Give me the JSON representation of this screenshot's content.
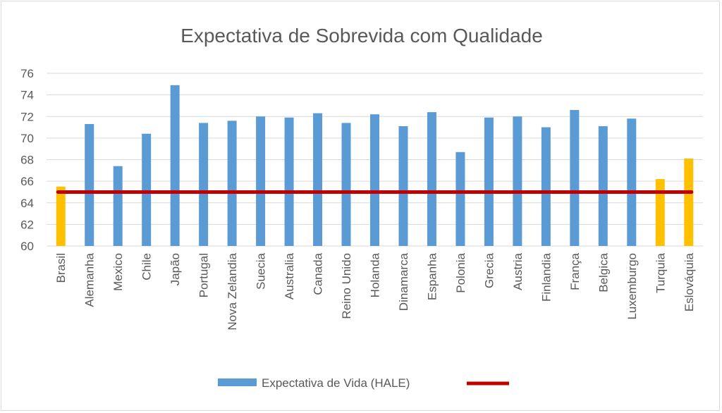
{
  "chart_data": {
    "type": "bar",
    "title": "Expectativa de Sobrevida com Qualidade",
    "xlabel": "",
    "ylabel": "",
    "ylim": [
      60,
      76
    ],
    "yticks": [
      60,
      62,
      64,
      66,
      68,
      70,
      72,
      74,
      76
    ],
    "grid": true,
    "categories": [
      "Brasil",
      "Alemanha",
      "Mexico",
      "Chile",
      "Japão",
      "Portugal",
      "Nova Zelandia",
      "Suecia",
      "Australia",
      "Canada",
      "Reino Unido",
      "Holanda",
      "Dinamarca",
      "Espanha",
      "Polonia",
      "Grecia",
      "Austria",
      "Finlandia",
      "França",
      "Belgica",
      "Luxemburgo",
      "Turquia",
      "Eslováquia"
    ],
    "series": [
      {
        "name": "Expectativa de Vida (HALE)",
        "values": [
          65.5,
          71.3,
          67.4,
          70.4,
          74.9,
          71.4,
          71.6,
          72.0,
          71.9,
          72.3,
          71.4,
          72.2,
          71.1,
          72.4,
          68.7,
          71.9,
          72.0,
          71.0,
          72.6,
          71.1,
          71.8,
          66.2,
          68.1
        ],
        "color": "#5b9bd5",
        "highlight_color": "#ffc000",
        "highlight_categories": [
          "Brasil",
          "Turquia",
          "Eslováquia"
        ]
      },
      {
        "name": "",
        "type": "line",
        "value": 65.0,
        "color": "#c00000"
      }
    ],
    "legend_position": "bottom"
  }
}
